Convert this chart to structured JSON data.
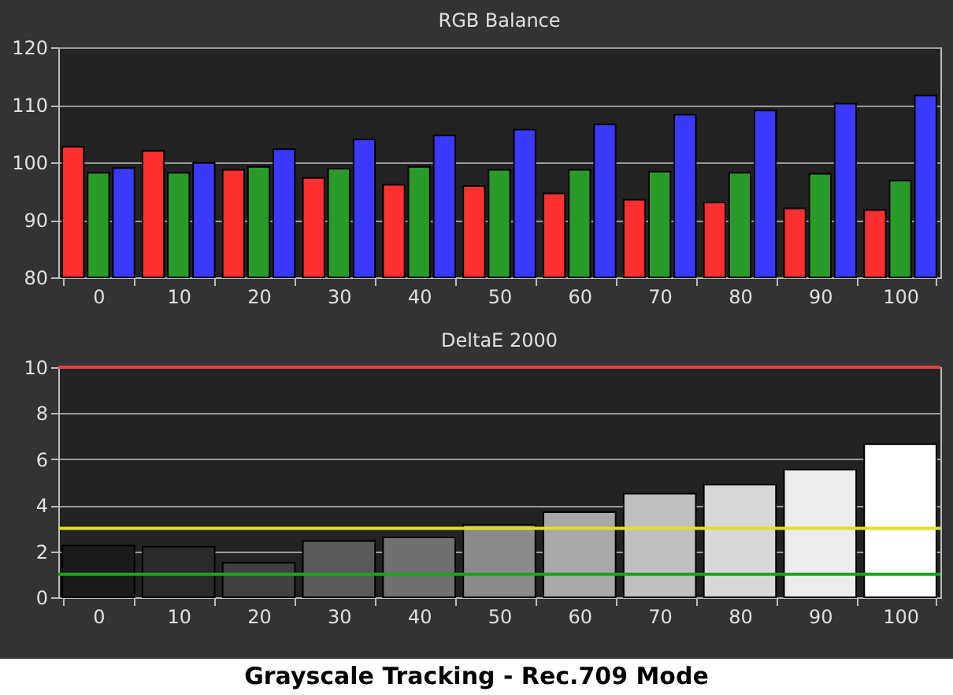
{
  "chart_data": [
    {
      "type": "bar",
      "title": "RGB Balance",
      "categories": [
        "0",
        "10",
        "20",
        "30",
        "40",
        "50",
        "60",
        "70",
        "80",
        "90",
        "100"
      ],
      "series": [
        {
          "color": "#ff3030",
          "values": [
            102.7,
            102,
            98.7,
            97.3,
            96.1,
            95.9,
            94.6,
            93.5,
            93,
            92,
            91.7
          ]
        },
        {
          "color": "#2a9a2a",
          "values": [
            98.2,
            98.2,
            99.2,
            98.9,
            99.2,
            98.7,
            98.7,
            98.4,
            98.2,
            98,
            96.8
          ]
        },
        {
          "color": "#3a3aff",
          "values": [
            99,
            99.9,
            102.3,
            104,
            104.7,
            105.7,
            106.6,
            108.3,
            109,
            110.2,
            111.6
          ]
        }
      ],
      "ylim": [
        80,
        120
      ],
      "yticks": [
        80,
        90,
        100,
        110,
        120
      ],
      "grid": "y"
    },
    {
      "type": "bar",
      "title": "DeltaE 2000",
      "categories": [
        "0",
        "10",
        "20",
        "30",
        "40",
        "50",
        "60",
        "70",
        "80",
        "90",
        "100"
      ],
      "values": [
        2.25,
        2.2,
        1.5,
        2.45,
        2.6,
        3.15,
        3.7,
        4.5,
        4.9,
        5.55,
        6.65
      ],
      "colors": [
        "#1a1a1a",
        "#2a2a2a",
        "#404040",
        "#5a5a5a",
        "#707070",
        "#8a8a8a",
        "#a8a8a8",
        "#c0c0c0",
        "#d8d8d8",
        "#ececec",
        "#ffffff"
      ],
      "ylim": [
        0,
        10
      ],
      "yticks": [
        0,
        2,
        4,
        6,
        8,
        10
      ],
      "grid": "y",
      "ref_lines": [
        {
          "axis": "y",
          "value": 10,
          "color": "#e04040"
        },
        {
          "axis": "y",
          "value": 3,
          "color": "#e0e020"
        },
        {
          "axis": "y",
          "value": 1,
          "color": "#20a020"
        }
      ],
      "annotations": [
        "Grayscale Tracking - Rec.709 Mode"
      ]
    }
  ]
}
